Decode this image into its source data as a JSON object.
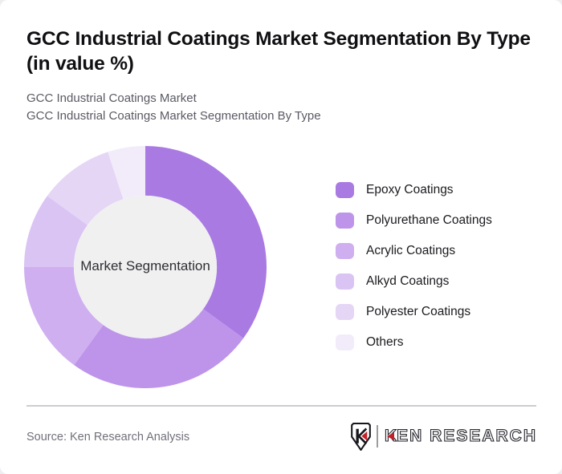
{
  "header": {
    "title_line1": "GCC Industrial Coatings Market Segmentation By Type",
    "title_line2": "(in value %)",
    "subtitle_line1": "GCC Industrial Coatings Market",
    "subtitle_line2": "GCC Industrial Coatings Market Segmentation By Type"
  },
  "chart_data": {
    "type": "pie",
    "subtype": "donut",
    "title": "GCC Industrial Coatings Market Segmentation By Type (in value %)",
    "center_label": "Market Segmentation",
    "categories": [
      "Epoxy Coatings",
      "Polyurethane Coatings",
      "Acrylic Coatings",
      "Alkyd Coatings",
      "Polyester Coatings",
      "Others"
    ],
    "values": [
      35,
      25,
      15,
      10,
      10,
      5
    ],
    "unit": "%",
    "colors": [
      "#aa7ae3",
      "#bd94ea",
      "#cfaff0",
      "#dac4f3",
      "#e5d6f6",
      "#f2ecfa"
    ],
    "center_fill": "#f0f0f1",
    "start_angle_deg": 0,
    "direction": "clockwise",
    "inner_radius_ratio": 0.59,
    "legend_position": "right",
    "data_labels": "none"
  },
  "footer": {
    "source": "Source: Ken Research Analysis",
    "logo": {
      "brand_k": "K",
      "brand_rest": "EN RESEARCH",
      "accent_red": "#c5202a"
    }
  }
}
